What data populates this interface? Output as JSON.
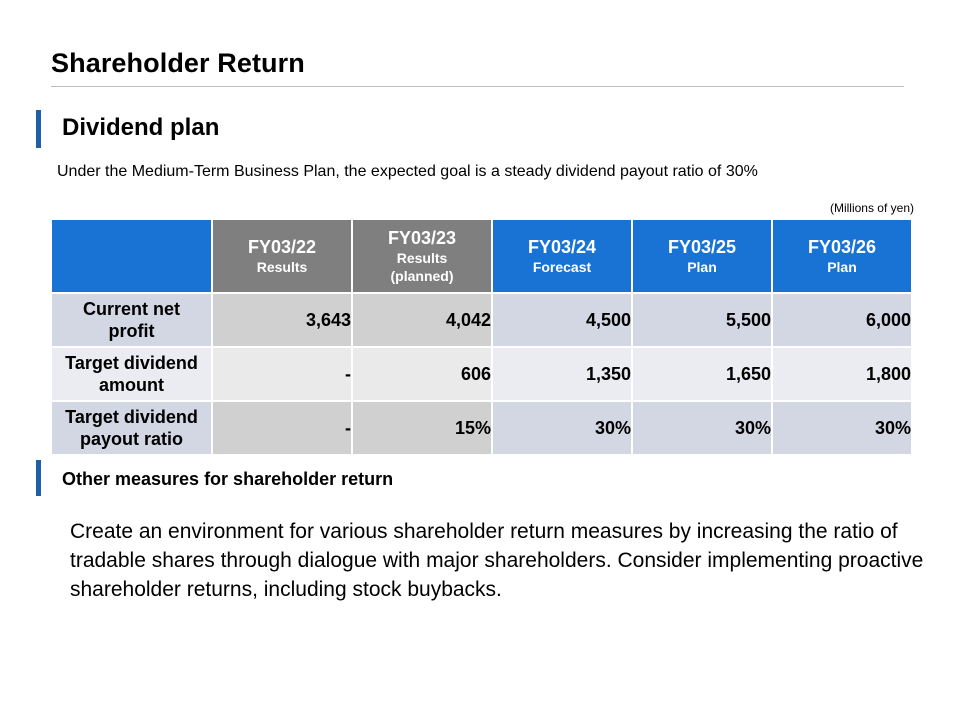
{
  "title": "Shareholder Return",
  "section": {
    "heading": "Dividend plan",
    "intro": "Under the Medium-Term Business Plan, the expected goal is a steady dividend payout ratio of 30%",
    "unit": "(Millions of yen)"
  },
  "table": {
    "columns": [
      {
        "year": "FY03/22",
        "status": "Results"
      },
      {
        "year": "FY03/23",
        "status": "Results (planned)"
      },
      {
        "year": "FY03/24",
        "status": "Forecast"
      },
      {
        "year": "FY03/25",
        "status": "Plan"
      },
      {
        "year": "FY03/26",
        "status": "Plan"
      }
    ],
    "rows": [
      {
        "label": "Current net profit",
        "values": [
          "3,643",
          "4,042",
          "4,500",
          "5,500",
          "6,000"
        ]
      },
      {
        "label": "Target dividend amount",
        "values": [
          "-",
          "606",
          "1,350",
          "1,650",
          "1,800"
        ]
      },
      {
        "label": "Target dividend payout ratio",
        "values": [
          "-",
          "15%",
          "30%",
          "30%",
          "30%"
        ]
      }
    ]
  },
  "other": {
    "heading": "Other measures for shareholder return",
    "body": "Create an environment for various shareholder return measures by increasing the ratio of tradable shares through dialogue with major shareholders. Consider implementing proactive shareholder returns, including stock buybacks."
  },
  "colors": {
    "accent_bar": "#1f5fa8",
    "header_blue": "#1873d4",
    "header_gray": "#7f7f7f"
  }
}
